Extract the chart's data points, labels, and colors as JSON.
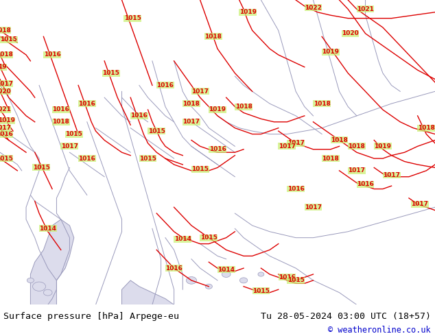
{
  "title_left": "Surface pressure [hPa] Arpege-eu",
  "title_right": "Tu 28-05-2024 03:00 UTC (18+57)",
  "copyright": "© weatheronline.co.uk",
  "map_bg": "#c8f070",
  "contour_color": "#dd0000",
  "border_color": "#9999bb",
  "sea_color": "#dcdcec",
  "bottom_bar_color": "#ffffff",
  "bottom_text_color": "#000000",
  "copyright_color": "#0000cc",
  "font_size_bottom": 9.5,
  "font_size_copyright": 8.5,
  "font_size_label": 6.5,
  "lw_contour": 1.0,
  "lw_border": 0.7,
  "figsize": [
    6.34,
    4.9
  ],
  "dpi": 100
}
